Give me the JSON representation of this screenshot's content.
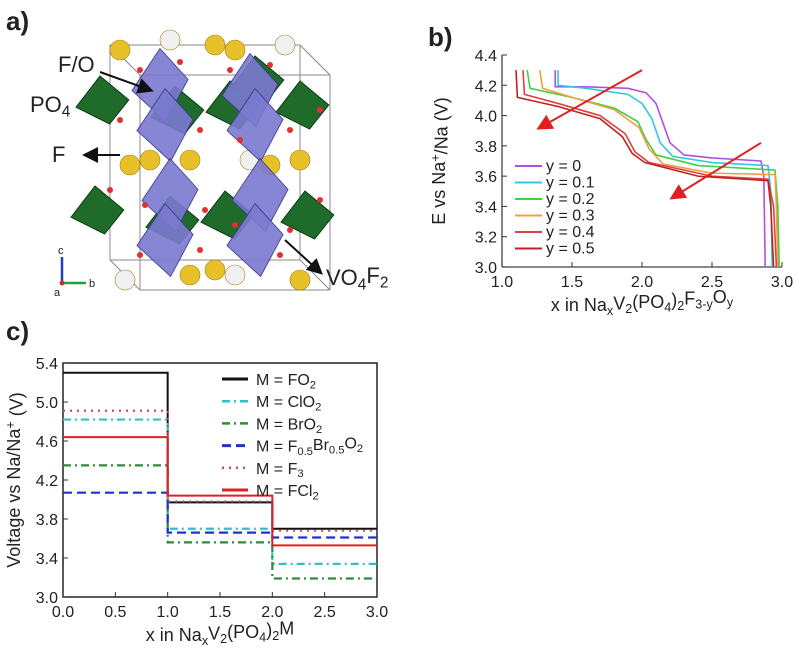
{
  "panels": {
    "a": "a)",
    "b": "b)",
    "c": "c)"
  },
  "structure": {
    "labels": {
      "fo": "F/O",
      "po4": "PO_4",
      "f": "F",
      "vo4f2": "VO_4F_2"
    },
    "axes": {
      "c": "c",
      "b": "b",
      "a": "a"
    },
    "colors": {
      "octahedron": "#7a7ad0",
      "tetrahedron": "#1f6b2a",
      "sphere": "#e8c02a",
      "oxygen": "#e03030"
    }
  },
  "chart_data": [
    {
      "id": "b",
      "type": "line",
      "xlabel": "x in Na_xV_2(PO_4)_2F_{3-y}O_y",
      "ylabel": "E vs Na^+/Na (V)",
      "xlim": [
        1.0,
        3.0
      ],
      "ylim": [
        3.0,
        4.4
      ],
      "xticks": [
        "1.0",
        "1.5",
        "2.0",
        "2.5",
        "3.0"
      ],
      "yticks": [
        "3.0",
        "3.2",
        "3.4",
        "3.6",
        "3.8",
        "4.0",
        "4.2",
        "4.4"
      ],
      "legend_position": "lower-left",
      "series": [
        {
          "name": "y = 0",
          "color": "#b050e0",
          "points": [
            [
              1.38,
              4.3
            ],
            [
              1.38,
              4.19
            ],
            [
              1.6,
              4.19
            ],
            [
              1.9,
              4.18
            ],
            [
              2.03,
              4.15
            ],
            [
              2.1,
              4.08
            ],
            [
              2.15,
              3.95
            ],
            [
              2.2,
              3.82
            ],
            [
              2.3,
              3.74
            ],
            [
              2.5,
              3.72
            ],
            [
              2.85,
              3.7
            ],
            [
              2.87,
              3.6
            ],
            [
              2.88,
              3.0
            ]
          ]
        },
        {
          "name": "y = 0.1",
          "color": "#30c8e0",
          "points": [
            [
              1.4,
              4.3
            ],
            [
              1.4,
              4.2
            ],
            [
              1.6,
              4.18
            ],
            [
              1.9,
              4.14
            ],
            [
              2.0,
              4.08
            ],
            [
              2.07,
              3.98
            ],
            [
              2.13,
              3.82
            ],
            [
              2.22,
              3.73
            ],
            [
              2.5,
              3.69
            ],
            [
              2.9,
              3.67
            ],
            [
              2.92,
              3.5
            ],
            [
              2.93,
              3.0
            ]
          ]
        },
        {
          "name": "y = 0.2",
          "color": "#40d040",
          "points": [
            [
              1.18,
              4.3
            ],
            [
              1.2,
              4.18
            ],
            [
              1.5,
              4.12
            ],
            [
              1.8,
              4.05
            ],
            [
              1.97,
              3.96
            ],
            [
              2.03,
              3.84
            ],
            [
              2.1,
              3.74
            ],
            [
              2.4,
              3.67
            ],
            [
              2.95,
              3.64
            ],
            [
              2.97,
              3.4
            ],
            [
              2.98,
              3.0
            ]
          ]
        },
        {
          "name": "y = 0.3",
          "color": "#f0a040",
          "points": [
            [
              1.27,
              4.3
            ],
            [
              1.29,
              4.18
            ],
            [
              1.5,
              4.12
            ],
            [
              1.8,
              4.04
            ],
            [
              1.98,
              3.92
            ],
            [
              2.05,
              3.78
            ],
            [
              2.15,
              3.68
            ],
            [
              2.5,
              3.62
            ],
            [
              2.95,
              3.61
            ],
            [
              2.96,
              3.4
            ],
            [
              2.97,
              3.0
            ]
          ]
        },
        {
          "name": "y = 0.4",
          "color": "#e04040",
          "points": [
            [
              1.15,
              4.3
            ],
            [
              1.16,
              4.14
            ],
            [
              1.4,
              4.08
            ],
            [
              1.7,
              4.0
            ],
            [
              1.88,
              3.88
            ],
            [
              1.95,
              3.76
            ],
            [
              2.05,
              3.69
            ],
            [
              2.5,
              3.6
            ],
            [
              2.9,
              3.58
            ],
            [
              2.94,
              3.4
            ],
            [
              2.96,
              3.0
            ]
          ]
        },
        {
          "name": "y = 0.5",
          "color": "#c02020",
          "points": [
            [
              1.1,
              4.3
            ],
            [
              1.11,
              4.12
            ],
            [
              1.4,
              4.06
            ],
            [
              1.7,
              3.98
            ],
            [
              1.86,
              3.86
            ],
            [
              1.93,
              3.75
            ],
            [
              2.02,
              3.69
            ],
            [
              2.4,
              3.6
            ],
            [
              2.9,
              3.57
            ],
            [
              2.92,
              3.4
            ],
            [
              2.94,
              3.0
            ]
          ]
        }
      ],
      "arrows": [
        {
          "from": [
            2.0,
            4.3
          ],
          "to": [
            1.27,
            3.92
          ],
          "color": "#e02020"
        },
        {
          "from": [
            2.85,
            3.82
          ],
          "to": [
            2.22,
            3.46
          ],
          "color": "#e02020"
        }
      ]
    },
    {
      "id": "c",
      "type": "line",
      "xlabel": "x in Na_xV_2(PO_4)_2M",
      "ylabel": "Voltage vs Na/Na^+ (V)",
      "xlim": [
        0.0,
        3.0
      ],
      "ylim": [
        3.0,
        5.4
      ],
      "xticks": [
        "0.0",
        "0.5",
        "1.0",
        "1.5",
        "2.0",
        "2.5",
        "3.0"
      ],
      "yticks": [
        "3.0",
        "3.4",
        "3.8",
        "4.2",
        "4.6",
        "5.0",
        "5.4"
      ],
      "legend_position": "top-right",
      "series": [
        {
          "name": "M = FO_2",
          "color": "#111111",
          "style": "solid",
          "steps": [
            5.3,
            3.97,
            3.7
          ]
        },
        {
          "name": "M = ClO_2",
          "color": "#30c0c8",
          "style": "dashdot",
          "steps": [
            4.82,
            3.7,
            3.34
          ]
        },
        {
          "name": "M = BrO_2",
          "color": "#2e8b3a",
          "style": "dashdot",
          "steps": [
            4.35,
            3.56,
            3.19
          ]
        },
        {
          "name": "M = F_{0.5}Br_{0.5}O_2",
          "color": "#2030d0",
          "style": "dashed",
          "steps": [
            4.07,
            3.66,
            3.61
          ]
        },
        {
          "name": "M = F_3",
          "color": "#c05060",
          "style": "dotted",
          "steps": [
            4.91,
            3.98,
            3.68
          ]
        },
        {
          "name": "M = FCl_2",
          "color": "#e02020",
          "style": "solid",
          "steps": [
            4.64,
            4.04,
            3.53
          ]
        }
      ]
    }
  ]
}
